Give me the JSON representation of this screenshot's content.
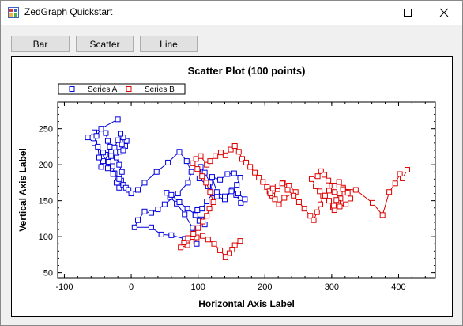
{
  "window": {
    "title": "ZedGraph Quickstart",
    "minimize_icon": "minimize-icon",
    "maximize_icon": "maximize-icon",
    "close_icon": "close-icon"
  },
  "toolbar": {
    "bar_label": "Bar",
    "scatter_label": "Scatter",
    "line_label": "Line"
  },
  "chart_data": {
    "type": "line",
    "title": "Scatter Plot (100 points)",
    "xlabel": "Horizontal Axis Label",
    "ylabel": "Vertical Axis Label",
    "xlim": [
      -110,
      455
    ],
    "ylim": [
      43,
      287
    ],
    "xticks": [
      -100,
      0,
      100,
      200,
      300,
      400
    ],
    "yticks": [
      50,
      100,
      150,
      200,
      250
    ],
    "legend": "top-left",
    "grid": false,
    "series": [
      {
        "name": "Series A",
        "color": "#0000dd",
        "x": [
          -20,
          -55,
          -65,
          -55,
          -52,
          -45,
          -38,
          -35,
          -32,
          -30,
          -38,
          -42,
          -45,
          -48,
          -50,
          -42,
          -34,
          -28,
          -25,
          -22,
          -18,
          -15,
          -14,
          -18,
          -22,
          -17,
          -9,
          -7,
          -12,
          -14,
          -12,
          -16,
          -20,
          -25,
          -30,
          -35,
          -27,
          -18,
          -12,
          -8,
          -4,
          0,
          10,
          20,
          38,
          55,
          72,
          83,
          90,
          85,
          70,
          50,
          40,
          30,
          20,
          10,
          5,
          30,
          45,
          60,
          80,
          98,
          92,
          80,
          68,
          58,
          53,
          60,
          72,
          84,
          96,
          105,
          110,
          102,
          96,
          99,
          106,
          113,
          122,
          118,
          110,
          104,
          102,
          115,
          128,
          140,
          151,
          158,
          163,
          154,
          144,
          133,
          121,
          128,
          140,
          150,
          157,
          164,
          170,
          160
        ],
        "y": [
          263,
          245,
          238,
          230,
          240,
          250,
          244,
          233,
          225,
          218,
          214,
          205,
          197,
          210,
          225,
          217,
          204,
          198,
          188,
          175,
          168,
          178,
          190,
          200,
          210,
          218,
          226,
          233,
          220,
          228,
          238,
          243,
          234,
          224,
          212,
          195,
          187,
          180,
          172,
          168,
          165,
          160,
          165,
          175,
          190,
          203,
          218,
          205,
          190,
          175,
          160,
          145,
          138,
          133,
          135,
          123,
          113,
          113,
          103,
          102,
          97,
          90,
          112,
          131,
          146,
          155,
          161,
          158,
          148,
          139,
          131,
          124,
          117,
          122,
          130,
          137,
          139,
          149,
          160,
          175,
          189,
          197,
          181,
          170,
          156,
          152,
          165,
          172,
          182,
          188,
          187,
          179,
          183,
          162,
          156,
          163,
          158,
          147,
          152,
          160
        ]
      },
      {
        "name": "Series B",
        "color": "#dd0000",
        "x": [
          163,
          155,
          151,
          147,
          141,
          133,
          124,
          115,
          107,
          98,
          90,
          84,
          74,
          79,
          85,
          93,
          100,
          107,
          113,
          117,
          123,
          118,
          112,
          106,
          99,
          92,
          97,
          104,
          113,
          118,
          126,
          134,
          141,
          149,
          155,
          161,
          166,
          172,
          178,
          185,
          191,
          197,
          203,
          207,
          211,
          219,
          227,
          236,
          246,
          229,
          221,
          215,
          208,
          212,
          219,
          226,
          234,
          243,
          251,
          259,
          268,
          273,
          278,
          283,
          287,
          282,
          276,
          270,
          279,
          284,
          289,
          295,
          300,
          304,
          313,
          309,
          302,
          296,
          290,
          296,
          304,
          311,
          317,
          324,
          328,
          321,
          312,
          304,
          303,
          307,
          312,
          317,
          336,
          361,
          376,
          386,
          395,
          402,
          406,
          413
        ],
        "y": [
          94,
          88,
          82,
          77,
          72,
          81,
          90,
          96,
          101,
          99,
          93,
          88,
          85,
          92,
          98,
          104,
          112,
          121,
          129,
          139,
          148,
          162,
          175,
          184,
          194,
          202,
          208,
          212,
          200,
          205,
          212,
          217,
          213,
          221,
          226,
          218,
          208,
          203,
          197,
          189,
          182,
          176,
          169,
          163,
          157,
          166,
          175,
          171,
          162,
          154,
          145,
          152,
          160,
          167,
          170,
          174,
          165,
          157,
          148,
          139,
          129,
          123,
          134,
          145,
          157,
          163,
          170,
          180,
          184,
          191,
          186,
          178,
          171,
          162,
          153,
          147,
          141,
          150,
          157,
          164,
          171,
          176,
          168,
          161,
          153,
          145,
          142,
          137,
          143,
          151,
          160,
          166,
          165,
          147,
          130,
          162,
          174,
          187,
          181,
          193
        ]
      }
    ]
  }
}
